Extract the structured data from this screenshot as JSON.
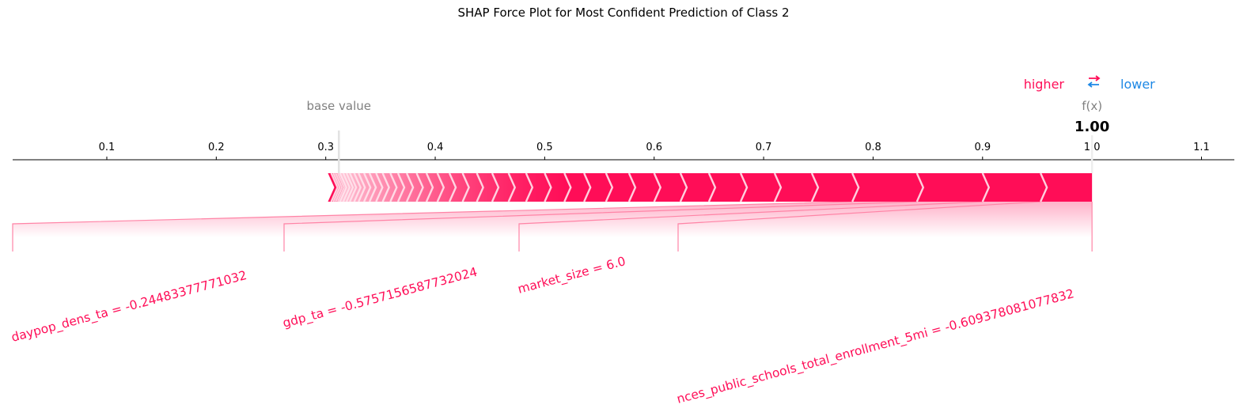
{
  "chart_data": {
    "type": "force",
    "title": "SHAP Force Plot for Most Confident Prediction of Class 2",
    "legend": {
      "higher": "higher",
      "arrows": "⇄",
      "lower": "lower"
    },
    "base_value_label": "base value",
    "output_label": "f(x)",
    "base_value": 0.312,
    "output_value": 1.0,
    "output_value_text": "1.00",
    "xlim": [
      0.014,
      1.13
    ],
    "ticks": [
      0.1,
      0.2,
      0.3,
      0.4,
      0.5,
      0.6,
      0.7,
      0.8,
      0.9,
      1.0,
      1.1
    ],
    "tick_labels": [
      "0.1",
      "0.2",
      "0.3",
      "0.4",
      "0.5",
      "0.6",
      "0.7",
      "0.8",
      "0.9",
      "1.0",
      "1.1"
    ],
    "features": [
      {
        "label": "daypop_dens_ta = -0.24483377771032",
        "shap": 0.059
      },
      {
        "label": "gdp_ta = -0.5757156587732024",
        "shap": 0.06
      },
      {
        "label": "market_size = 6.0",
        "shap": 0.053
      },
      {
        "label": "nces_public_schools_total_enrollment_5mi = -0.609378081077832",
        "shap": 0.047
      }
    ],
    "minor_segments": [
      0.037,
      0.034,
      0.031,
      0.029,
      0.026,
      0.024,
      0.023,
      0.021,
      0.02,
      0.018,
      0.018,
      0.017,
      0.016,
      0.015,
      0.014,
      0.013,
      0.012,
      0.011,
      0.01,
      0.009,
      0.009,
      0.008,
      0.007,
      0.007,
      0.006,
      0.006,
      0.005,
      0.005,
      0.004,
      0.004,
      0.003,
      0.003,
      0.003,
      0.002,
      0.002,
      0.002,
      0.002,
      0.003
    ],
    "colors": {
      "positive": "#ff0d57",
      "positive_light": "#ffc3d5",
      "negative": "#1e88e5",
      "connector": "#ff84a6",
      "base_text": "#808080",
      "tick_text": "#000000"
    }
  }
}
